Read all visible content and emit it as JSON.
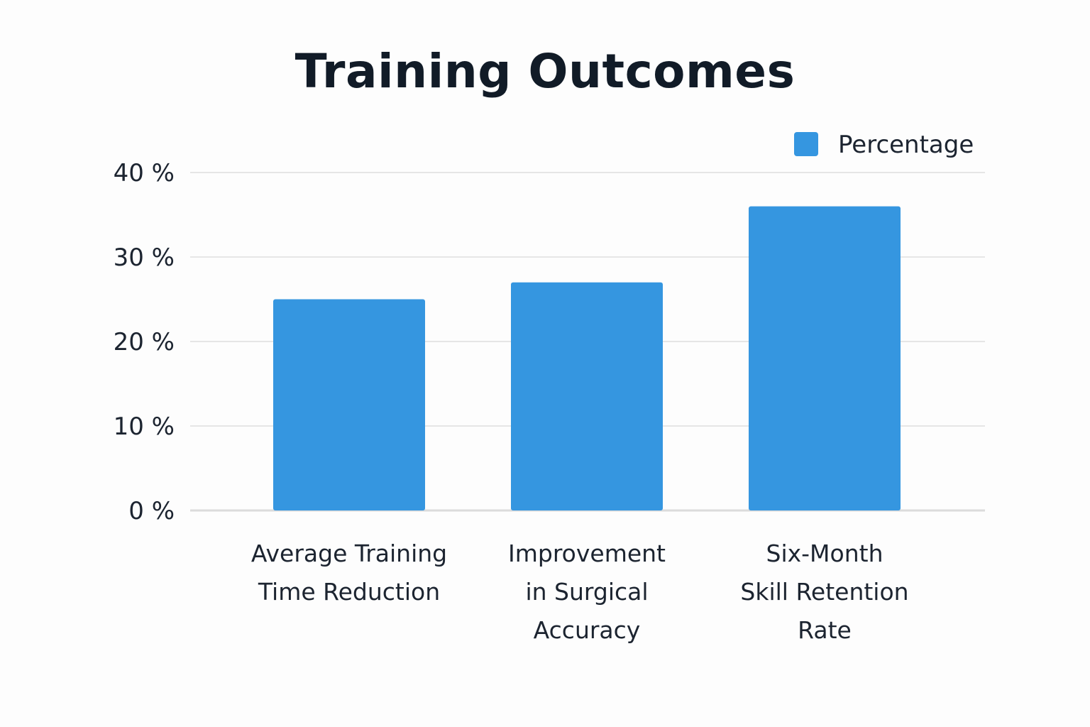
{
  "chart_data": {
    "type": "bar",
    "title": "Training Outcomes",
    "categories": [
      [
        "Average Training",
        "Time Reduction"
      ],
      [
        "Improvement",
        "in Surgical",
        "Accuracy"
      ],
      [
        "Six-Month",
        "Skill Retention",
        "Rate"
      ]
    ],
    "series": [
      {
        "name": "Percentage",
        "values": [
          25,
          27,
          36
        ],
        "color": "#3596e0"
      }
    ],
    "ylim": [
      0,
      40
    ],
    "yticks": [
      0,
      10,
      20,
      30,
      40
    ],
    "ytick_labels": [
      "0 %",
      "10 %",
      "20 %",
      "30 %",
      "40 %"
    ],
    "xlabel": "",
    "ylabel": "",
    "grid": true,
    "legend_position": "top-right"
  }
}
